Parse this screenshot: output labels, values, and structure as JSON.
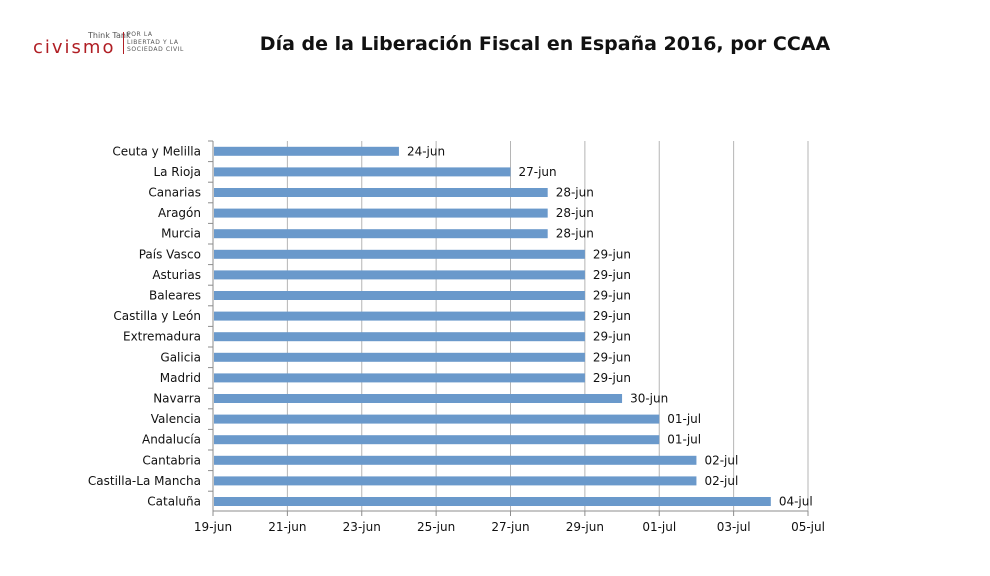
{
  "logo": {
    "think_tank": "Think Tank",
    "wordmark": "civismo",
    "tagline_1": "POR LA",
    "tagline_2": "LIBERTAD Y LA",
    "tagline_3": "SOCIEDAD CIVIL"
  },
  "colors": {
    "bar": "#6a99cb",
    "brand": "#b01e24",
    "grid": "#b5b5b5",
    "axis": "#8c8c8c"
  },
  "chart_data": {
    "type": "bar",
    "orientation": "horizontal",
    "title": "Día de la Liberación Fiscal en España 2016, por CCAA",
    "xlabel": "",
    "ylabel": "",
    "x_ticks": [
      "19-jun",
      "21-jun",
      "23-jun",
      "25-jun",
      "27-jun",
      "29-jun",
      "01-jul",
      "03-jul",
      "05-jul"
    ],
    "xlim": [
      "19-jun",
      "05-jul"
    ],
    "grid": "vertical",
    "legend": "none",
    "categories": [
      "Ceuta y Melilla",
      "La Rioja",
      "Canarias",
      "Aragón",
      "Murcia",
      "País Vasco",
      "Asturias",
      "Baleares",
      "Castilla y León",
      "Extremadura",
      "Galicia",
      "Madrid",
      "Navarra",
      "Valencia",
      "Andalucía",
      "Cantabria",
      "Castilla-La Mancha",
      "Cataluña"
    ],
    "values": [
      "24-jun",
      "27-jun",
      "28-jun",
      "28-jun",
      "28-jun",
      "29-jun",
      "29-jun",
      "29-jun",
      "29-jun",
      "29-jun",
      "29-jun",
      "29-jun",
      "30-jun",
      "01-jul",
      "01-jul",
      "02-jul",
      "02-jul",
      "04-jul"
    ],
    "data_labels": [
      "24-jun",
      "27-jun",
      "28-jun",
      "28-jun",
      "28-jun",
      "29-jun",
      "29-jun",
      "29-jun",
      "29-jun",
      "29-jun",
      "29-jun",
      "29-jun",
      "30-jun",
      "01-jul",
      "01-jul",
      "02-jul",
      "02-jul",
      "04-jul"
    ]
  }
}
